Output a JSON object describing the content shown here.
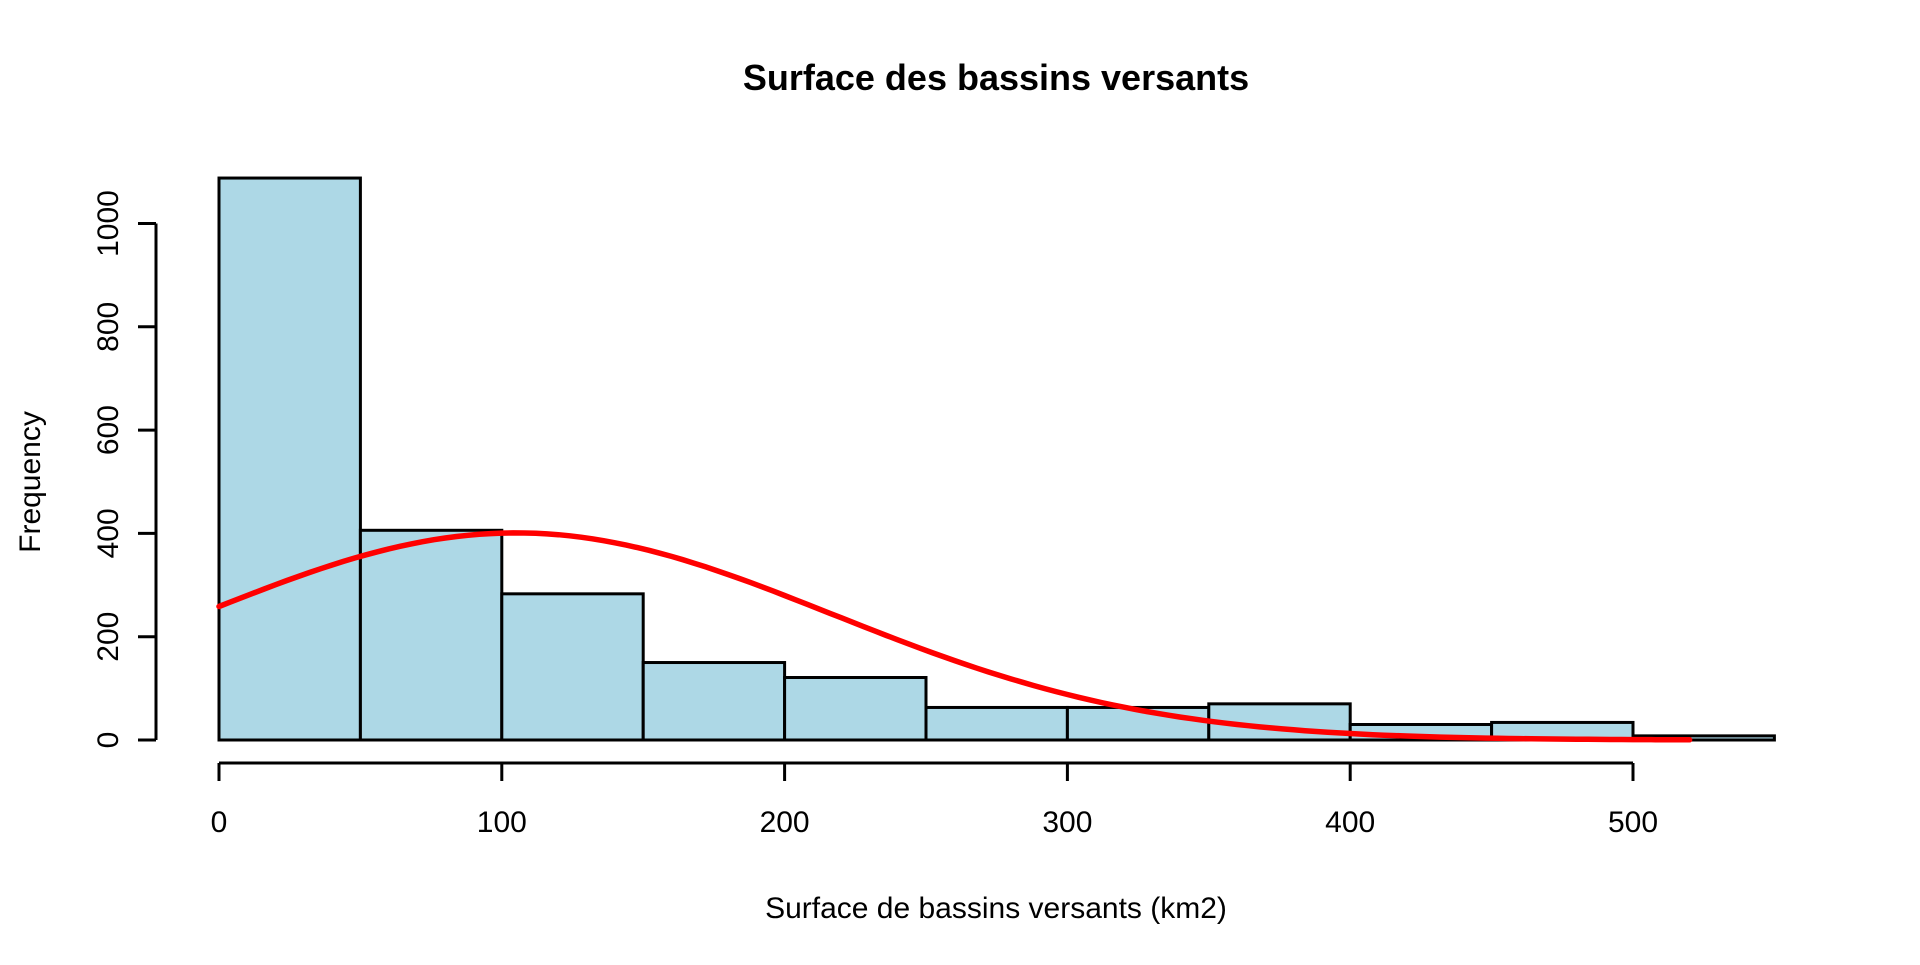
{
  "chart_data": {
    "type": "bar",
    "subtype": "histogram",
    "title": "Surface des bassins versants",
    "xlabel": "Surface de bassins versants (km2)",
    "ylabel": "Frequency",
    "bin_width": 50,
    "bin_edges": [
      0,
      50,
      100,
      150,
      200,
      250,
      300,
      350,
      400,
      450,
      500,
      550
    ],
    "counts": [
      1088,
      406,
      283,
      150,
      121,
      63,
      63,
      70,
      30,
      34,
      8
    ],
    "x_ticks": [
      0,
      100,
      200,
      300,
      400,
      500
    ],
    "y_ticks": [
      0,
      200,
      400,
      600,
      800,
      1000
    ],
    "xlim": [
      0,
      550
    ],
    "ylim": [
      0,
      1000
    ],
    "grid": false,
    "legend": null,
    "bar_fill": "#ADD8E6",
    "bar_border": "#000000",
    "axis_color": "#000000",
    "background": "#FFFFFF",
    "curve": {
      "shape": "normal-density",
      "color": "#FF0000",
      "amplitude": 401,
      "mean": 105,
      "sd": 112,
      "x_start": 0,
      "x_end": 520
    }
  }
}
